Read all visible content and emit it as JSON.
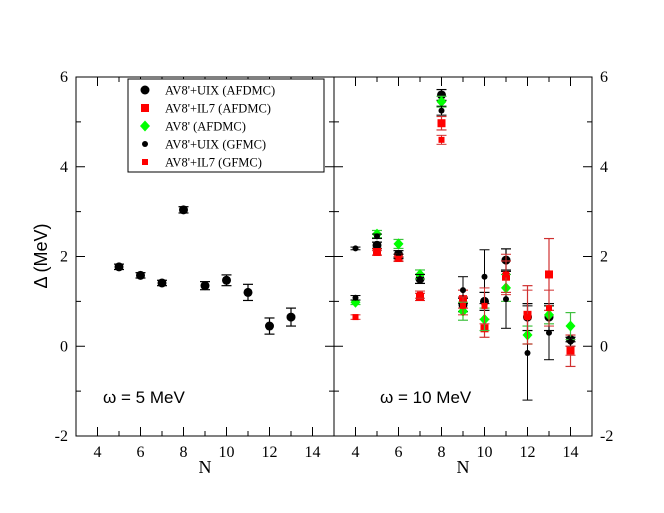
{
  "chart_data": {
    "type": "scatter",
    "ylabel": "Δ (MeV)",
    "ylim": [
      -2,
      6
    ],
    "yticks": [
      -2,
      0,
      2,
      4,
      6
    ],
    "colors": {
      "black": "#000000",
      "red": "#ff0000",
      "green": "#00ff00",
      "errorbar_red": "#d03030",
      "errorbar_green": "#40c040"
    },
    "legend": {
      "position": "top-left of right panel",
      "entries": [
        {
          "label": "AV8'+UIX (AFDMC)",
          "marker": "circle",
          "color": "black"
        },
        {
          "label": "AV8'+IL7 (AFDMC)",
          "marker": "square",
          "color": "red"
        },
        {
          "label": "AV8' (AFDMC)",
          "marker": "diamond",
          "color": "green"
        },
        {
          "label": "AV8'+UIX (GFMC)",
          "marker": "small-circle",
          "color": "black"
        },
        {
          "label": "AV8'+IL7 (GFMC)",
          "marker": "small-square",
          "color": "red"
        }
      ]
    },
    "panels": [
      {
        "id": "left",
        "xlabel": "N",
        "xlim": [
          3,
          15
        ],
        "xticks": [
          4,
          6,
          8,
          10,
          12,
          14
        ],
        "annotation": "ω = 5 MeV",
        "series": [
          {
            "name": "AV8'+UIX (AFDMC)",
            "marker": "circle",
            "color": "black",
            "points": [
              {
                "x": 5,
                "y": 1.77,
                "err": 0.06
              },
              {
                "x": 6,
                "y": 1.58,
                "err": 0.06
              },
              {
                "x": 7,
                "y": 1.41,
                "err": 0.06
              },
              {
                "x": 8,
                "y": 3.04,
                "err": 0.07
              },
              {
                "x": 9,
                "y": 1.35,
                "err": 0.09
              },
              {
                "x": 10,
                "y": 1.47,
                "err": 0.12
              },
              {
                "x": 11,
                "y": 1.2,
                "err": 0.18
              },
              {
                "x": 12,
                "y": 0.45,
                "err": 0.18
              },
              {
                "x": 13,
                "y": 0.65,
                "err": 0.2
              }
            ]
          }
        ]
      },
      {
        "id": "right",
        "xlabel": "N",
        "xlim": [
          3,
          15
        ],
        "xticks": [
          4,
          6,
          8,
          10,
          12,
          14
        ],
        "annotation": "ω = 10 MeV",
        "series": [
          {
            "name": "AV8'+UIX (AFDMC)",
            "marker": "circle",
            "color": "black",
            "points": [
              {
                "x": 5,
                "y": 2.25,
                "err": 0.07
              },
              {
                "x": 6,
                "y": 2.05,
                "err": 0.08
              },
              {
                "x": 7,
                "y": 1.5,
                "err": 0.1
              },
              {
                "x": 8,
                "y": 5.6,
                "err": 0.12
              },
              {
                "x": 9,
                "y": 0.92,
                "err": 0.15
              },
              {
                "x": 10,
                "y": 1.0,
                "err": 0.2
              },
              {
                "x": 11,
                "y": 1.92,
                "err": 0.25
              },
              {
                "x": 12,
                "y": 0.65,
                "err": 0.3
              },
              {
                "x": 13,
                "y": 0.65,
                "err": 0.3
              },
              {
                "x": 14,
                "y": 0.15,
                "err": 0.05
              }
            ]
          },
          {
            "name": "AV8'+IL7 (AFDMC)",
            "marker": "square",
            "color": "red",
            "points": [
              {
                "x": 5,
                "y": 2.1,
                "err": 0.07
              },
              {
                "x": 6,
                "y": 1.97,
                "err": 0.08
              },
              {
                "x": 7,
                "y": 1.1,
                "err": 0.08
              },
              {
                "x": 8,
                "y": 4.97,
                "err": 0.15
              },
              {
                "x": 9,
                "y": 1.05,
                "err": 0.2
              },
              {
                "x": 10,
                "y": 0.4,
                "err": 0.2
              },
              {
                "x": 11,
                "y": 1.55,
                "err": 0.35
              },
              {
                "x": 12,
                "y": 0.7,
                "err": 0.65
              },
              {
                "x": 13,
                "y": 1.6,
                "err": 0.8
              },
              {
                "x": 14,
                "y": -0.1,
                "err": 0.35
              }
            ]
          },
          {
            "name": "AV8' (AFDMC)",
            "marker": "diamond",
            "color": "green",
            "points": [
              {
                "x": 4,
                "y": 0.98,
                "err": 0.05
              },
              {
                "x": 5,
                "y": 2.5,
                "err": 0.08
              },
              {
                "x": 6,
                "y": 2.28,
                "err": 0.1
              },
              {
                "x": 7,
                "y": 1.6,
                "err": 0.1
              },
              {
                "x": 8,
                "y": 5.45,
                "err": 0.12
              },
              {
                "x": 9,
                "y": 0.78,
                "err": 0.2
              },
              {
                "x": 10,
                "y": 0.6,
                "err": 0.25
              },
              {
                "x": 11,
                "y": 1.3,
                "err": 0.3
              },
              {
                "x": 12,
                "y": 0.25,
                "err": 0.2
              },
              {
                "x": 13,
                "y": 0.7,
                "err": 0.2
              },
              {
                "x": 14,
                "y": 0.45,
                "err": 0.3
              }
            ]
          },
          {
            "name": "AV8'+UIX (GFMC)",
            "marker": "small-circle",
            "color": "black",
            "points": [
              {
                "x": 4,
                "y": 2.18,
                "err": 0.03
              },
              {
                "x": 4,
                "y": 1.08,
                "err": 0.05
              },
              {
                "x": 5,
                "y": 2.45,
                "err": 0.05
              },
              {
                "x": 6,
                "y": 2.0,
                "err": 0.05
              },
              {
                "x": 7,
                "y": 1.5,
                "err": 0.1
              },
              {
                "x": 8,
                "y": 5.25,
                "err": 0.1
              },
              {
                "x": 9,
                "y": 1.25,
                "err": 0.3
              },
              {
                "x": 10,
                "y": 1.55,
                "err": 0.6
              },
              {
                "x": 11,
                "y": 1.05,
                "err": 0.65
              },
              {
                "x": 12,
                "y": -0.15,
                "err": 1.05
              },
              {
                "x": 13,
                "y": 0.3,
                "err": 0.6
              },
              {
                "x": 14,
                "y": 0.1,
                "err": 0.1
              }
            ]
          },
          {
            "name": "AV8'+IL7 (GFMC)",
            "marker": "small-square",
            "color": "red",
            "points": [
              {
                "x": 4,
                "y": 0.65,
                "err": 0.05
              },
              {
                "x": 5,
                "y": 2.08,
                "err": 0.05
              },
              {
                "x": 6,
                "y": 1.95,
                "err": 0.05
              },
              {
                "x": 7,
                "y": 1.15,
                "err": 0.08
              },
              {
                "x": 8,
                "y": 4.6,
                "err": 0.1
              },
              {
                "x": 9,
                "y": 0.9,
                "err": 0.2
              },
              {
                "x": 10,
                "y": 0.9,
                "err": 0.4
              },
              {
                "x": 11,
                "y": 1.6,
                "err": 0.45
              },
              {
                "x": 12,
                "y": 0.65,
                "err": 0.6
              },
              {
                "x": 13,
                "y": 0.85,
                "err": 0.4
              },
              {
                "x": 14,
                "y": -0.1,
                "err": 0.1
              }
            ]
          }
        ]
      }
    ]
  }
}
